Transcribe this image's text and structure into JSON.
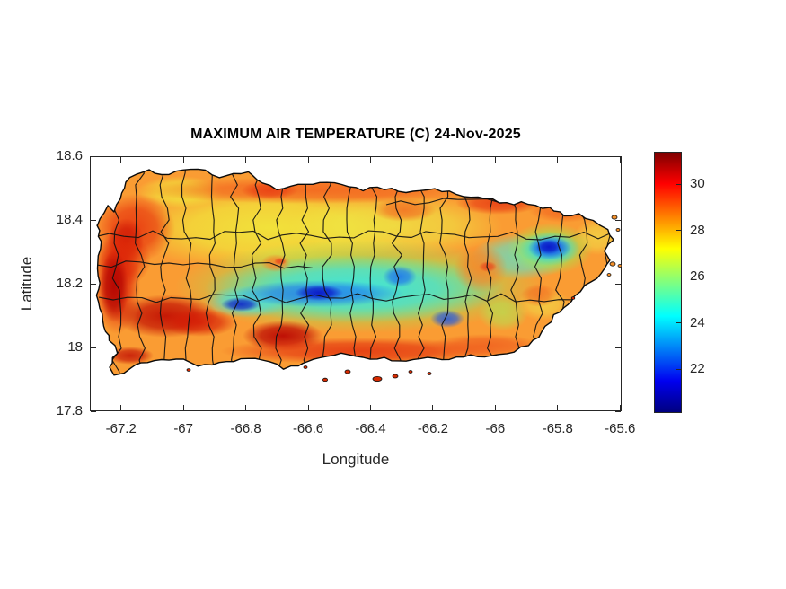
{
  "figure": {
    "title": "MAXIMUM AIR TEMPERATURE (C) 24-Nov-2025"
  },
  "axes": {
    "xlabel": "Longitude",
    "ylabel": "Latitude",
    "xlim": [
      -67.3,
      -65.595
    ],
    "ylim": [
      17.8,
      18.6
    ],
    "xticks": [
      -67.2,
      -67,
      -66.8,
      -66.6,
      -66.4,
      -66.2,
      -66,
      -65.8,
      -65.6
    ],
    "yticks": [
      18.6,
      18.4,
      18.2,
      18,
      17.8
    ]
  },
  "colorbar": {
    "ticks": [
      30,
      28,
      26,
      24,
      22
    ],
    "limits": [
      20.1,
      31.4
    ],
    "colormap": "jet"
  },
  "chart_data": {
    "type": "heatmap",
    "title": "MAXIMUM AIR TEMPERATURE (C) 24-Nov-2025",
    "region": "Puerto Rico (municipal boundaries overlaid)",
    "date": "24-Nov-2025",
    "units": "C",
    "xlabel": "Longitude",
    "ylabel": "Latitude",
    "xlim": [
      -67.3,
      -65.6
    ],
    "ylim": [
      17.8,
      18.6
    ],
    "clim": [
      20.1,
      31.4
    ],
    "colormap": "jet",
    "legend_position": "right-colorbar",
    "grid": false,
    "summary": "Filled-contour map of maximum air temperature over Puerto Rico. Coasts are warm (29-31 C), hottest along the west/southwest and south coasts (~31 C). The central Cordillera and El Yunque in the east are coolest (21-24 C). North coast ~28-29 C.",
    "samples": [
      {
        "lon": -67.15,
        "lat": 18.35,
        "tmax": 30.5
      },
      {
        "lon": -67.22,
        "lat": 18.19,
        "tmax": 31.0
      },
      {
        "lon": -67.06,
        "lat": 18.1,
        "tmax": 31.0
      },
      {
        "lon": -66.85,
        "lat": 17.97,
        "tmax": 30.5
      },
      {
        "lon": -66.7,
        "lat": 18.02,
        "tmax": 31.0
      },
      {
        "lon": -66.2,
        "lat": 18.0,
        "tmax": 29.5
      },
      {
        "lon": -66.6,
        "lat": 18.45,
        "tmax": 29.0
      },
      {
        "lon": -66.35,
        "lat": 18.44,
        "tmax": 28.0
      },
      {
        "lon": -65.95,
        "lat": 18.42,
        "tmax": 29.5
      },
      {
        "lon": -66.9,
        "lat": 18.4,
        "tmax": 27.5
      },
      {
        "lon": -66.81,
        "lat": 18.13,
        "tmax": 21.5
      },
      {
        "lon": -66.57,
        "lat": 18.17,
        "tmax": 21.0
      },
      {
        "lon": -66.31,
        "lat": 18.22,
        "tmax": 22.5
      },
      {
        "lon": -66.15,
        "lat": 18.09,
        "tmax": 22.5
      },
      {
        "lon": -65.82,
        "lat": 18.31,
        "tmax": 21.0
      },
      {
        "lon": -66.4,
        "lat": 18.2,
        "tmax": 24.0
      },
      {
        "lon": -66.05,
        "lat": 18.25,
        "tmax": 28.5
      },
      {
        "lon": -65.7,
        "lat": 18.3,
        "tmax": 27.5
      },
      {
        "lon": -65.75,
        "lat": 18.1,
        "tmax": 28.5
      },
      {
        "lon": -66.55,
        "lat": 18.3,
        "tmax": 26.0
      }
    ]
  }
}
